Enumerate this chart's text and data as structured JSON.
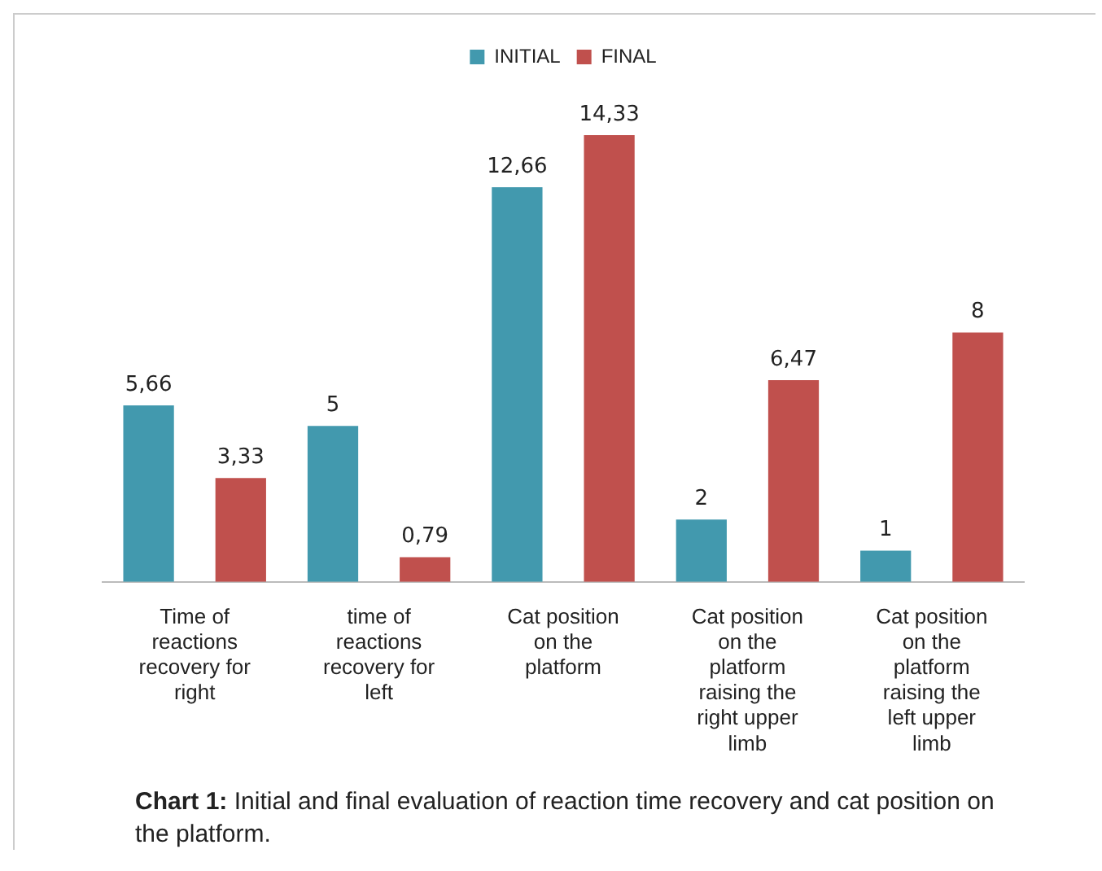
{
  "chart_data": {
    "type": "bar",
    "categories": [
      "Time of reactions recovery for right",
      "time of reactions recovery for left",
      "Cat position on the platform",
      "Cat position on the platform raising the right upper limb",
      "Cat position on the platform raising the left upper limb"
    ],
    "series": [
      {
        "name": "INITIAL",
        "color": "#4299ae",
        "values": [
          5.66,
          5,
          12.66,
          2,
          1
        ],
        "value_labels": [
          "5,66",
          "5",
          "12,66",
          "2",
          "1"
        ]
      },
      {
        "name": "FINAL",
        "color": "#c0504d",
        "values": [
          3.33,
          0.79,
          14.33,
          6.47,
          8
        ],
        "value_labels": [
          "3,33",
          "0,79",
          "14,33",
          "6,47",
          "8"
        ]
      }
    ],
    "legend": "top",
    "grid": false,
    "annotations": [
      "Chart 1: Initial and final evaluation of reaction time recovery and cat position on the platform."
    ]
  }
}
